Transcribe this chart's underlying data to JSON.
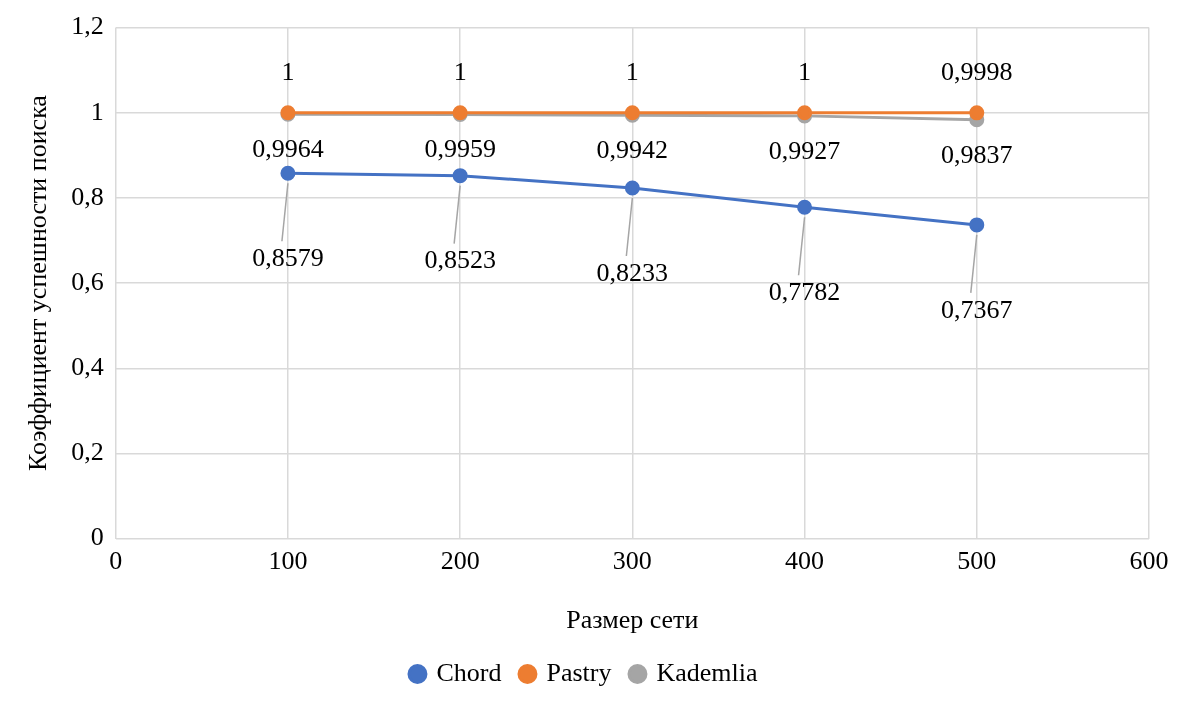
{
  "chart_data": {
    "type": "line",
    "xlabel": "Размер сети",
    "ylabel": "Коэффициент успешности поиска",
    "x": [
      100,
      200,
      300,
      400,
      500
    ],
    "series": [
      {
        "name": "Chord",
        "color": "#4472c4",
        "values": [
          0.8579,
          0.8523,
          0.8233,
          0.7782,
          0.7367
        ],
        "value_labels": [
          "0,8579",
          "0,8523",
          "0,8233",
          "0,7782",
          "0,7367"
        ]
      },
      {
        "name": "Pastry",
        "color": "#ed7d31",
        "values": [
          1,
          1,
          1,
          1,
          0.9998
        ],
        "value_labels": [
          "1",
          "1",
          "1",
          "1",
          "0,9998"
        ]
      },
      {
        "name": "Kademlia",
        "color": "#a5a5a5",
        "values": [
          0.9964,
          0.9959,
          0.9942,
          0.9927,
          0.9837
        ],
        "value_labels": [
          "0,9964",
          "0,9959",
          "0,9942",
          "0,9927",
          "0,9837"
        ]
      }
    ],
    "xlim": [
      0,
      600
    ],
    "xticks": [
      0,
      100,
      200,
      300,
      400,
      500,
      600
    ],
    "ylim": [
      0,
      1.2
    ],
    "yticks": [
      0,
      {
        "value": 0.2,
        "label": "0,2"
      },
      {
        "value": 0.4,
        "label": "0,4"
      },
      {
        "value": 0.6,
        "label": "0,6"
      },
      {
        "value": 0.8,
        "label": "0,8"
      },
      1,
      {
        "value": 1.2,
        "label": "1,2"
      }
    ],
    "grid": true,
    "legend": "bottom",
    "marker": "circle",
    "line_style": "solid"
  }
}
